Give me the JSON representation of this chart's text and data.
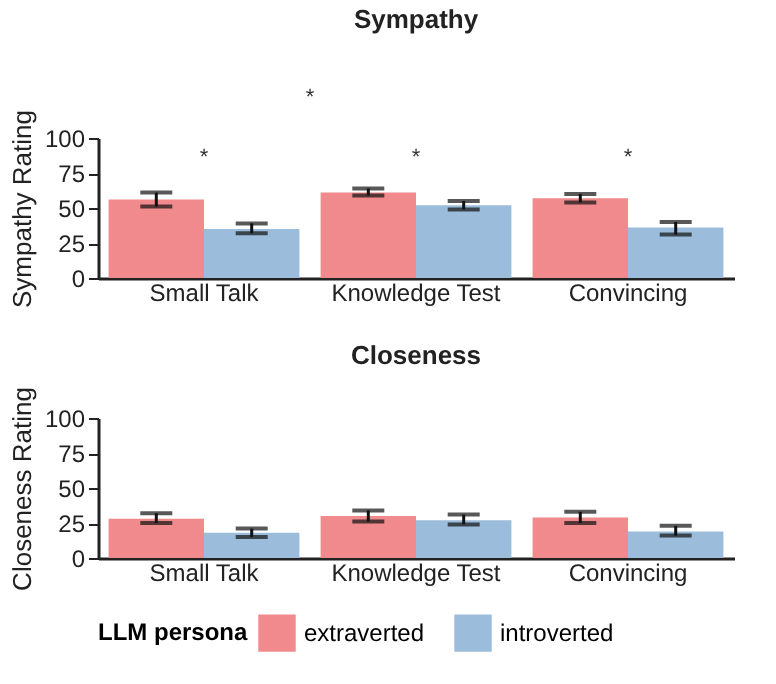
{
  "chart_data": [
    {
      "type": "bar",
      "title": "Sympathy",
      "ylabel": "Sympathy Rating",
      "categories": [
        "Small Talk",
        "Knowledge Test",
        "Convincing"
      ],
      "series": [
        {
          "name": "extraverted",
          "color": "#f08a8c",
          "values": [
            56,
            61,
            57
          ],
          "errors": [
            [
              51,
              61
            ],
            [
              59,
              64
            ],
            [
              54,
              60
            ]
          ]
        },
        {
          "name": "introverted",
          "color": "#9bbddb",
          "values": [
            35,
            52,
            36
          ],
          "errors": [
            [
              32,
              39
            ],
            [
              49,
              55
            ],
            [
              31,
              40
            ]
          ]
        }
      ],
      "ylim": [
        0,
        100
      ],
      "yticks": [
        0,
        25,
        50,
        75,
        100
      ],
      "grid": false,
      "legend": "bottom",
      "annotations": [
        "*",
        "*",
        "*",
        "*"
      ]
    },
    {
      "type": "bar",
      "title": "Closeness",
      "ylabel": "Closeness Rating",
      "categories": [
        "Small Talk",
        "Knowledge Test",
        "Convincing"
      ],
      "series": [
        {
          "name": "extraverted",
          "color": "#f08a8c",
          "values": [
            28,
            30,
            29
          ],
          "errors": [
            [
              25,
              32
            ],
            [
              26,
              34
            ],
            [
              25,
              33
            ]
          ]
        },
        {
          "name": "introverted",
          "color": "#9bbddb",
          "values": [
            18,
            27,
            19
          ],
          "errors": [
            [
              15,
              21
            ],
            [
              24,
              31
            ],
            [
              16,
              23
            ]
          ]
        }
      ],
      "ylim": [
        0,
        100
      ],
      "yticks": [
        0,
        25,
        50,
        75,
        100
      ],
      "grid": false,
      "legend": "bottom",
      "legend_title": "LLM persona"
    }
  ]
}
